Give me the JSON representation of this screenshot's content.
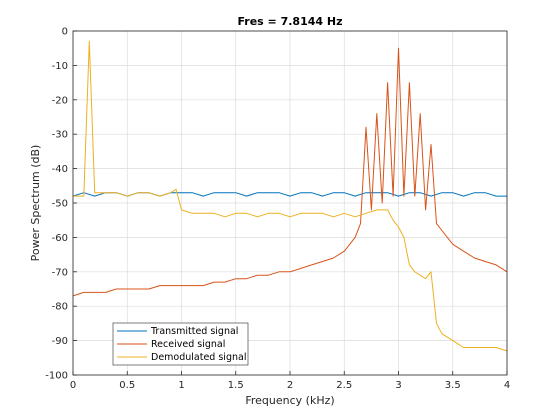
{
  "chart_data": {
    "type": "line",
    "title": "Fres = 7.8144 Hz",
    "xlabel": "Frequency (kHz)",
    "ylabel": "Power Spectrum (dB)",
    "xlim": [
      0,
      4
    ],
    "ylim": [
      -100,
      0
    ],
    "x_ticks": [
      "0",
      "0.5",
      "1",
      "1.5",
      "2",
      "2.5",
      "3",
      "3.5",
      "4"
    ],
    "y_ticks": [
      "0",
      "-10",
      "-20",
      "-30",
      "-40",
      "-50",
      "-60",
      "-70",
      "-80",
      "-90",
      "-100"
    ],
    "grid": true,
    "legend_position": "bottom-left",
    "colors": {
      "transmitted": "#0072BD",
      "received": "#D95319",
      "demodulated": "#EDB120"
    },
    "series": [
      {
        "name": "Transmitted signal",
        "x": [
          0,
          0.1,
          0.2,
          0.3,
          0.4,
          0.5,
          0.6,
          0.7,
          0.8,
          0.9,
          1.0,
          1.1,
          1.2,
          1.3,
          1.4,
          1.5,
          1.6,
          1.7,
          1.8,
          1.9,
          2.0,
          2.1,
          2.2,
          2.3,
          2.4,
          2.5,
          2.6,
          2.7,
          2.8,
          2.9,
          3.0,
          3.1,
          3.2,
          3.3,
          3.4,
          3.5,
          3.6,
          3.7,
          3.8,
          3.9,
          4.0
        ],
        "values": [
          -48,
          -47,
          -48,
          -47,
          -47,
          -48,
          -47,
          -47,
          -48,
          -47,
          -47,
          -47,
          -48,
          -47,
          -47,
          -47,
          -48,
          -47,
          -47,
          -47,
          -48,
          -47,
          -47,
          -48,
          -47,
          -47,
          -48,
          -47,
          -47,
          -47,
          -48,
          -47,
          -47,
          -48,
          -47,
          -47,
          -48,
          -47,
          -47,
          -48,
          -48
        ]
      },
      {
        "name": "Received signal",
        "x": [
          0,
          0.1,
          0.2,
          0.3,
          0.4,
          0.5,
          0.6,
          0.7,
          0.8,
          0.9,
          1.0,
          1.1,
          1.2,
          1.3,
          1.4,
          1.5,
          1.6,
          1.7,
          1.8,
          1.9,
          2.0,
          2.1,
          2.2,
          2.3,
          2.4,
          2.5,
          2.55,
          2.6,
          2.65,
          2.7,
          2.75,
          2.8,
          2.85,
          2.9,
          2.95,
          3.0,
          3.05,
          3.1,
          3.15,
          3.2,
          3.25,
          3.3,
          3.35,
          3.4,
          3.5,
          3.6,
          3.7,
          3.8,
          3.9,
          4.0
        ],
        "values": [
          -77,
          -76,
          -76,
          -76,
          -75,
          -75,
          -75,
          -75,
          -74,
          -74,
          -74,
          -74,
          -74,
          -73,
          -73,
          -72,
          -72,
          -71,
          -71,
          -70,
          -70,
          -69,
          -68,
          -67,
          -66,
          -64,
          -62,
          -60,
          -56,
          -28,
          -52,
          -24,
          -50,
          -15,
          -48,
          -5,
          -48,
          -15,
          -48,
          -24,
          -52,
          -33,
          -56,
          -58,
          -62,
          -64,
          -66,
          -67,
          -68,
          -70
        ]
      },
      {
        "name": "Demodulated signal",
        "x": [
          0,
          0.05,
          0.1,
          0.15,
          0.2,
          0.3,
          0.4,
          0.5,
          0.6,
          0.7,
          0.8,
          0.9,
          0.95,
          1.0,
          1.1,
          1.2,
          1.3,
          1.4,
          1.5,
          1.6,
          1.7,
          1.8,
          1.9,
          2.0,
          2.1,
          2.2,
          2.3,
          2.4,
          2.5,
          2.6,
          2.7,
          2.8,
          2.9,
          2.95,
          3.0,
          3.05,
          3.1,
          3.15,
          3.2,
          3.25,
          3.3,
          3.35,
          3.4,
          3.5,
          3.6,
          3.7,
          3.8,
          3.9,
          4.0
        ],
        "values": [
          -48,
          -48,
          -48,
          -3,
          -47,
          -47,
          -47,
          -48,
          -47,
          -47,
          -48,
          -47,
          -46,
          -52,
          -53,
          -53,
          -53,
          -54,
          -53,
          -53,
          -54,
          -53,
          -53,
          -54,
          -53,
          -53,
          -53,
          -54,
          -53,
          -54,
          -53,
          -52,
          -52,
          -55,
          -57,
          -60,
          -68,
          -70,
          -71,
          -72,
          -70,
          -85,
          -88,
          -90,
          -92,
          -92,
          -92,
          -92,
          -93
        ]
      }
    ]
  }
}
